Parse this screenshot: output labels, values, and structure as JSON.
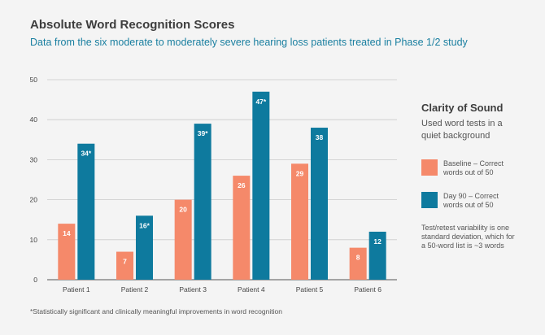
{
  "chart_data": {
    "type": "bar",
    "title": "Absolute Word Recognition Scores",
    "subtitle": "Data from the six moderate to moderately severe hearing loss patients treated in Phase 1/2 study",
    "categories": [
      "Patient 1",
      "Patient 2",
      "Patient 3",
      "Patient 4",
      "Patient 5",
      "Patient 6"
    ],
    "series": [
      {
        "name": "Baseline – Correct words out of 50",
        "color": "#f5896a",
        "values": [
          14,
          7,
          20,
          26,
          29,
          8
        ],
        "labels": [
          "14",
          "7",
          "20",
          "26",
          "29",
          "8"
        ]
      },
      {
        "name": "Day 90 – Correct words out of 50",
        "color": "#0e7a9e",
        "values": [
          34,
          16,
          39,
          47,
          38,
          12
        ],
        "labels": [
          "34*",
          "16*",
          "39*",
          "47*",
          "38",
          "12"
        ]
      }
    ],
    "ylim": [
      0,
      50
    ],
    "yticks": [
      0,
      10,
      20,
      30,
      40,
      50
    ],
    "grid": true,
    "xlabel": "",
    "ylabel": ""
  },
  "side": {
    "title": "Clarity of Sound",
    "description": "Used word tests in a quiet background",
    "legend_baseline": "Baseline – Correct words out of 50",
    "legend_day90": "Day 90 – Correct words out of 50",
    "note": "Test/retest variability is one standard deviation, which for a 50-word list is ~3 words"
  },
  "footnote": "*Statistically significant and clinically meaningful improvements in word recognition"
}
